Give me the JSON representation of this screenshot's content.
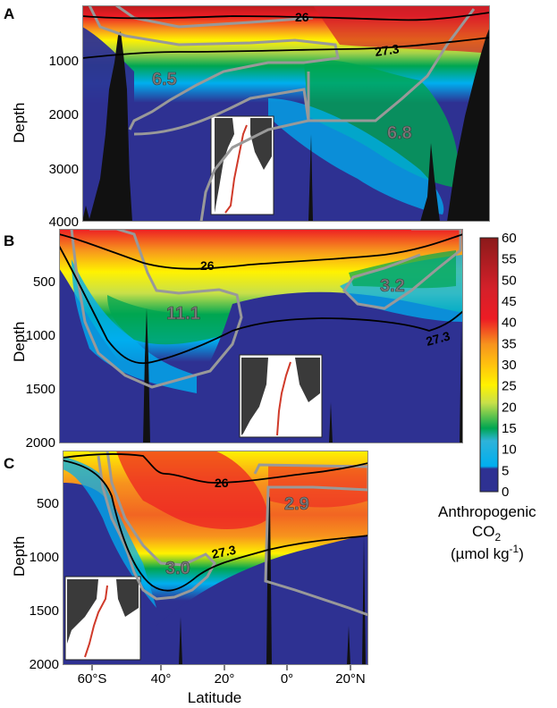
{
  "chart_data": [
    {
      "panel": "A",
      "type": "heatmap",
      "ylabel": "Depth",
      "y_ticks": [
        "1000",
        "2000",
        "3000",
        "4000"
      ],
      "ylim": [
        4000,
        0
      ],
      "contours": [
        {
          "label": "26",
          "depth_profile": [
            [
              -70,
              350
            ],
            [
              -55,
              150
            ],
            [
              -40,
              120
            ],
            [
              -20,
              180
            ],
            [
              0,
              210
            ],
            [
              20,
              220
            ],
            [
              45,
              170
            ],
            [
              64,
              120
            ]
          ]
        },
        {
          "label": "27.3",
          "depth_profile": [
            [
              -70,
              1000
            ],
            [
              -60,
              900
            ],
            [
              -50,
              850
            ],
            [
              -40,
              800
            ],
            [
              -20,
              780
            ],
            [
              0,
              760
            ],
            [
              20,
              700
            ],
            [
              40,
              640
            ],
            [
              64,
              500
            ]
          ]
        }
      ],
      "region_values": [
        {
          "label": "6.5",
          "value": 6.5
        },
        {
          "label": "6.8",
          "value": 6.8
        }
      ]
    },
    {
      "panel": "B",
      "type": "heatmap",
      "ylabel": "Depth",
      "y_ticks": [
        "500",
        "1000",
        "1500",
        "2000"
      ],
      "ylim": [
        2000,
        0
      ],
      "contours": [
        {
          "label": "26",
          "depth_profile": [
            [
              -70,
              100
            ],
            [
              -50,
              300
            ],
            [
              -40,
              420
            ],
            [
              -20,
              380
            ],
            [
              0,
              300
            ],
            [
              20,
              170
            ],
            [
              40,
              150
            ],
            [
              60,
              80
            ]
          ]
        },
        {
          "label": "27.3",
          "depth_profile": [
            [
              -70,
              300
            ],
            [
              -55,
              800
            ],
            [
              -48,
              1250
            ],
            [
              -40,
              1150
            ],
            [
              -20,
              950
            ],
            [
              0,
              850
            ],
            [
              20,
              860
            ],
            [
              40,
              850
            ],
            [
              60,
              750
            ]
          ]
        }
      ],
      "region_values": [
        {
          "label": "11.1",
          "value": 11.1
        },
        {
          "label": "3.2",
          "value": 3.2
        }
      ]
    },
    {
      "panel": "C",
      "type": "heatmap",
      "ylabel": "Depth",
      "y_ticks": [
        "500",
        "1000",
        "1500",
        "2000"
      ],
      "ylim": [
        2000,
        0
      ],
      "x_ticks": [
        "60°S",
        "40°",
        "20°",
        "0°",
        "20°N"
      ],
      "xlabel": "Latitude",
      "xlim": [
        -70,
        25
      ],
      "contours": [
        {
          "label": "26",
          "depth_profile": [
            [
              -70,
              150
            ],
            [
              -55,
              50
            ],
            [
              -45,
              80
            ],
            [
              -35,
              260
            ],
            [
              -20,
              210
            ],
            [
              -5,
              170
            ],
            [
              10,
              120
            ],
            [
              25,
              80
            ]
          ]
        },
        {
          "label": "27.3",
          "depth_profile": [
            [
              -70,
              250
            ],
            [
              -55,
              400
            ],
            [
              -45,
              1100
            ],
            [
              -40,
              1250
            ],
            [
              -30,
              1150
            ],
            [
              -15,
              900
            ],
            [
              0,
              850
            ],
            [
              15,
              780
            ],
            [
              25,
              750
            ]
          ]
        }
      ],
      "region_values": [
        {
          "label": "3.0",
          "value": 3.0
        },
        {
          "label": "2.9",
          "value": 2.9
        }
      ]
    }
  ],
  "colorbar": {
    "ticks": [
      "60",
      "55",
      "50",
      "45",
      "40",
      "35",
      "30",
      "25",
      "20",
      "15",
      "10",
      "5",
      "0"
    ],
    "range": [
      0,
      60
    ],
    "colors": [
      "#2e3192",
      "#00a9e6",
      "#00a651",
      "#fff200",
      "#f7941d",
      "#ed1c24",
      "#8b1a1a"
    ],
    "title_line1": "Anthropogenic",
    "title_line2_main": "CO",
    "title_line2_sub": "2",
    "title_line3_main": "(µmol kg",
    "title_line3_sup": "-1",
    "title_line3_end": ")"
  }
}
